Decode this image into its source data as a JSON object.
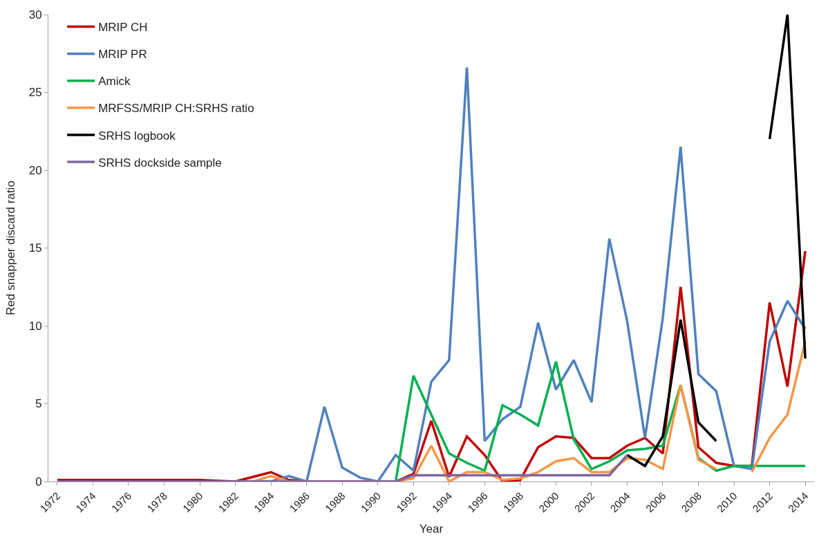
{
  "chart_data": {
    "type": "line",
    "xlabel": "Year",
    "ylabel": "Red snapper discard ratio",
    "x": [
      1972,
      1973,
      1974,
      1975,
      1976,
      1977,
      1978,
      1979,
      1980,
      1981,
      1982,
      1983,
      1984,
      1985,
      1986,
      1987,
      1988,
      1989,
      1990,
      1991,
      1992,
      1993,
      1994,
      1995,
      1996,
      1997,
      1998,
      1999,
      2000,
      2001,
      2002,
      2003,
      2004,
      2005,
      2006,
      2007,
      2008,
      2009,
      2010,
      2011,
      2012,
      2013,
      2014
    ],
    "xlim": [
      1971.5,
      2014.5
    ],
    "xticks": [
      1972,
      1974,
      1976,
      1978,
      1980,
      1982,
      1984,
      1986,
      1988,
      1990,
      1992,
      1994,
      1996,
      1998,
      2000,
      2002,
      2004,
      2006,
      2008,
      2010,
      2012,
      2014
    ],
    "ylim": [
      0,
      30
    ],
    "yticks": [
      0,
      5,
      10,
      15,
      20,
      25,
      30
    ],
    "legend": "top left",
    "marker": "none",
    "line_style": "solid",
    "series": [
      {
        "name": "MRIP CH",
        "color": "#c00000",
        "values": [
          0.1,
          0.1,
          0.1,
          0.1,
          0.1,
          0.1,
          0.1,
          0.1,
          0.1,
          0.05,
          0,
          0.3,
          0.6,
          0.1,
          0,
          0,
          0,
          0,
          0,
          0,
          0.5,
          3.9,
          0.3,
          2.9,
          1.7,
          0,
          0.1,
          2.2,
          2.9,
          2.8,
          1.5,
          1.5,
          2.3,
          2.8,
          1.8,
          12.5,
          2.2,
          1.2,
          1.0,
          1.0,
          11.5,
          6.1,
          14.8
        ]
      },
      {
        "name": "MRIP PR",
        "color": "#4f81bd",
        "values": [
          null,
          null,
          null,
          null,
          null,
          null,
          null,
          null,
          null,
          null,
          0,
          0,
          0,
          0.35,
          0,
          4.8,
          0.9,
          0.25,
          0,
          1.7,
          0.7,
          6.4,
          7.8,
          26.6,
          2.6,
          4.0,
          4.8,
          10.2,
          5.9,
          7.8,
          5.1,
          15.6,
          10.3,
          2.8,
          10.5,
          21.5,
          6.9,
          5.8,
          1.0,
          0.8,
          9.0,
          11.6,
          9.8
        ]
      },
      {
        "name": "Amick",
        "color": "#00b050",
        "values": [
          null,
          null,
          null,
          null,
          null,
          null,
          null,
          null,
          null,
          null,
          null,
          null,
          null,
          null,
          null,
          null,
          null,
          null,
          0,
          0,
          6.8,
          4.3,
          1.8,
          1.2,
          0.7,
          4.9,
          4.3,
          3.6,
          7.7,
          2.7,
          0.8,
          1.3,
          2.0,
          2.1,
          2.3,
          6.2,
          1.5,
          0.7,
          1.0,
          1.0,
          1.0,
          1.0,
          1.0
        ]
      },
      {
        "name": "MRFSS/MRIP CH:SRHS ratio",
        "color": "#f79646",
        "values": [
          null,
          null,
          null,
          null,
          null,
          null,
          null,
          null,
          null,
          null,
          0,
          0,
          0.35,
          0,
          0,
          0,
          0,
          0,
          0,
          0,
          0.2,
          2.3,
          0,
          0.6,
          0.6,
          0.1,
          0.2,
          0.6,
          1.3,
          1.5,
          0.6,
          0.6,
          1.5,
          1.4,
          0.8,
          6.2,
          1.4,
          0.8,
          null,
          0.6,
          2.8,
          4.3,
          9.0
        ]
      },
      {
        "name": "SRHS logbook",
        "color": "#000000",
        "values": [
          null,
          null,
          null,
          null,
          null,
          null,
          null,
          null,
          null,
          null,
          null,
          null,
          null,
          null,
          null,
          null,
          null,
          null,
          null,
          null,
          null,
          null,
          null,
          null,
          null,
          null,
          null,
          null,
          null,
          null,
          null,
          null,
          1.7,
          1.0,
          2.9,
          10.4,
          3.8,
          2.6,
          null,
          null,
          22,
          30,
          7.9
        ]
      },
      {
        "name": "SRHS dockside sample",
        "color": "#8064a2",
        "values": [
          0,
          0,
          0,
          0,
          0,
          0,
          0,
          0,
          0,
          0,
          0,
          0,
          0,
          0,
          0,
          0,
          0,
          0,
          0,
          0,
          0.4,
          0.4,
          0.4,
          0.4,
          0.4,
          0.4,
          0.4,
          0.4,
          0.4,
          0.4,
          0.4,
          0.4,
          1.7,
          null,
          null,
          null,
          null,
          null,
          null,
          null,
          null,
          null,
          null
        ]
      }
    ]
  }
}
